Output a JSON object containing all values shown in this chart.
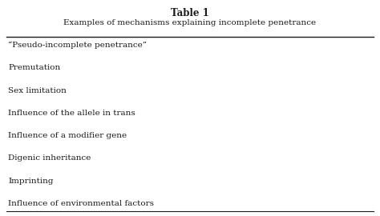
{
  "title": "Table 1",
  "subtitle": "Examples of mechanisms explaining incomplete penetrance",
  "items": [
    "“Pseudo-incomplete penetrance”",
    "Premutation",
    "Sex limitation",
    "Influence of the allele in trans",
    "Influence of a modifier gene",
    "Digenic inheritance",
    "Imprinting",
    "Influence of environmental factors"
  ],
  "bg_color": "#ffffff",
  "text_color": "#1a1a1a",
  "title_fontsize": 8.5,
  "subtitle_fontsize": 7.5,
  "item_fontsize": 7.5,
  "fig_width": 4.74,
  "fig_height": 2.7,
  "dpi": 100
}
